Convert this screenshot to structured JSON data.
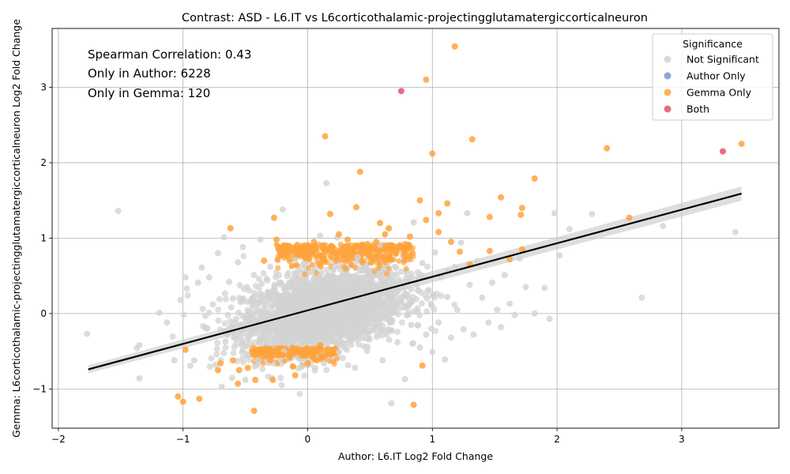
{
  "chart_data": {
    "type": "scatter",
    "title": "Contrast: ASD - L6.IT vs L6corticothalamic-projectingglutamatergiccorticalneuron",
    "xlabel": "Author: L6.IT Log2 Fold Change",
    "ylabel": "Gemma: L6corticothalamic-projectingglutamatergiccorticalneuron Log2 Fold Change",
    "xlim": [
      -2.05,
      3.78
    ],
    "ylim": [
      -1.52,
      3.78
    ],
    "xticks": [
      -2,
      -1,
      0,
      1,
      2,
      3
    ],
    "yticks": [
      -1,
      0,
      1,
      2,
      3
    ],
    "grid": true,
    "annotations": [
      "Spearman Correlation: 0.43",
      "Only in Author: 6228",
      "Only in Gemma: 120"
    ],
    "legend": {
      "title": "Significance",
      "position": "top-right",
      "entries": [
        {
          "label": "Not Significant",
          "color": "#d3d3d3"
        },
        {
          "label": "Author Only",
          "color": "#7b93d8"
        },
        {
          "label": "Gemma Only",
          "color": "#ffa33a"
        },
        {
          "label": "Both",
          "color": "#e0556f"
        }
      ]
    },
    "regression_line": {
      "x": [
        -1.76,
        3.48
      ],
      "y": [
        -0.74,
        1.59
      ],
      "color": "#000000"
    },
    "series": [
      {
        "name": "Not Significant",
        "color": "#d3d3d3",
        "points": [
          [
            -1.77,
            -0.27
          ],
          [
            -1.52,
            1.36
          ],
          [
            -1.35,
            -0.42
          ],
          [
            -1.37,
            -0.46
          ],
          [
            -1.35,
            -0.86
          ],
          [
            -1.19,
            0.01
          ],
          [
            -1.13,
            -0.12
          ],
          [
            -1.07,
            -0.62
          ],
          [
            -1.02,
            0.18
          ],
          [
            -0.98,
            0.48
          ],
          [
            -0.97,
            0.33
          ],
          [
            -0.91,
            -0.62
          ],
          [
            -0.88,
            0.41
          ],
          [
            -0.85,
            0.61
          ],
          [
            -0.82,
            -0.19
          ],
          [
            -0.79,
            0.48
          ],
          [
            -0.76,
            0.12
          ],
          [
            -0.74,
            -0.68
          ],
          [
            -0.72,
            0.8
          ],
          [
            -0.69,
            -0.97
          ],
          [
            -0.67,
            1.01
          ],
          [
            -0.66,
            -0.37
          ],
          [
            -0.63,
            0.42
          ],
          [
            -0.6,
            0.2
          ],
          [
            -0.58,
            -0.12
          ],
          [
            -0.56,
            0.68
          ],
          [
            -0.53,
            -0.42
          ],
          [
            -0.52,
            0.88
          ],
          [
            -0.5,
            -0.88
          ],
          [
            -0.47,
            0.31
          ],
          [
            -0.44,
            -0.21
          ],
          [
            -0.43,
            0.51
          ],
          [
            -0.4,
            -0.62
          ],
          [
            -0.38,
            0.98
          ],
          [
            -0.35,
            0.12
          ],
          [
            -0.33,
            -0.38
          ],
          [
            -0.3,
            0.62
          ],
          [
            -0.28,
            -0.66
          ],
          [
            -0.25,
            0.22
          ],
          [
            -0.23,
            -0.05
          ],
          [
            -0.2,
            1.38
          ],
          [
            -0.19,
            -0.5
          ],
          [
            -0.15,
            0.41
          ],
          [
            -0.13,
            -0.21
          ],
          [
            -0.1,
            0.71
          ],
          [
            -0.08,
            0.08
          ],
          [
            -0.05,
            -0.71
          ],
          [
            -0.03,
            0.3
          ],
          [
            0.0,
            -0.12
          ],
          [
            0.03,
            0.55
          ],
          [
            0.05,
            -0.4
          ],
          [
            0.08,
            0.11
          ],
          [
            0.1,
            1.03
          ],
          [
            0.13,
            -0.66
          ],
          [
            0.15,
            1.73
          ],
          [
            0.17,
            0.21
          ],
          [
            0.2,
            -0.18
          ],
          [
            0.22,
            0.62
          ],
          [
            0.25,
            -0.51
          ],
          [
            0.28,
            0.05
          ],
          [
            0.31,
            0.44
          ],
          [
            0.33,
            -0.31
          ],
          [
            0.35,
            0.18
          ],
          [
            0.38,
            -0.72
          ],
          [
            0.4,
            0.75
          ],
          [
            0.43,
            -0.12
          ],
          [
            0.45,
            0.33
          ],
          [
            0.48,
            -0.44
          ],
          [
            0.5,
            0.52
          ],
          [
            0.53,
            -0.21
          ],
          [
            0.55,
            0.08
          ],
          [
            0.58,
            0.91
          ],
          [
            0.6,
            -0.62
          ],
          [
            0.63,
            0.27
          ],
          [
            0.65,
            -0.08
          ],
          [
            0.67,
            -1.19
          ],
          [
            0.7,
            0.62
          ],
          [
            0.72,
            -0.38
          ],
          [
            0.75,
            0.21
          ],
          [
            0.78,
            -0.87
          ],
          [
            0.8,
            0.44
          ],
          [
            0.83,
            -0.15
          ],
          [
            0.85,
            1.21
          ],
          [
            0.88,
            0.03
          ],
          [
            0.9,
            -0.45
          ],
          [
            0.92,
            0.67
          ],
          [
            0.95,
            -0.28
          ],
          [
            0.97,
            0.31
          ],
          [
            1.0,
            -0.51
          ],
          [
            1.02,
            0.81
          ],
          [
            1.05,
            -0.12
          ],
          [
            1.07,
            0.48
          ],
          [
            1.1,
            -0.61
          ],
          [
            1.12,
            0.22
          ],
          [
            1.15,
            -0.32
          ],
          [
            1.18,
            0.62
          ],
          [
            1.2,
            0.05
          ],
          [
            1.23,
            0.94
          ],
          [
            1.25,
            -0.21
          ],
          [
            1.28,
            1.33
          ],
          [
            1.3,
            0.38
          ],
          [
            1.33,
            -0.28
          ],
          [
            1.36,
            0.69
          ],
          [
            1.4,
            0.21
          ],
          [
            1.45,
            -0.12
          ],
          [
            1.48,
            0.41
          ],
          [
            1.52,
            0.05
          ],
          [
            1.55,
            -0.18
          ],
          [
            1.58,
            0.51
          ],
          [
            1.62,
            0.13
          ],
          [
            1.66,
            -0.02
          ],
          [
            1.7,
            0.73
          ],
          [
            1.75,
            0.35
          ],
          [
            1.82,
            0.0
          ],
          [
            1.9,
            0.34
          ],
          [
            1.94,
            -0.07
          ],
          [
            1.98,
            1.33
          ],
          [
            2.02,
            0.77
          ],
          [
            2.1,
            1.12
          ],
          [
            2.28,
            1.32
          ],
          [
            2.68,
            0.21
          ],
          [
            2.85,
            1.16
          ],
          [
            3.43,
            1.08
          ]
        ]
      },
      {
        "name": "Author Only",
        "color": "#7b93d8",
        "points": []
      },
      {
        "name": "Gemma Only",
        "color": "#ffa33a",
        "points": [
          [
            1.18,
            3.54
          ],
          [
            0.95,
            3.1
          ],
          [
            0.14,
            2.35
          ],
          [
            1.32,
            2.31
          ],
          [
            2.4,
            2.19
          ],
          [
            3.48,
            2.25
          ],
          [
            1.0,
            2.12
          ],
          [
            0.42,
            1.88
          ],
          [
            1.82,
            1.79
          ],
          [
            1.72,
            1.4
          ],
          [
            1.55,
            1.54
          ],
          [
            1.12,
            1.46
          ],
          [
            0.9,
            1.5
          ],
          [
            0.39,
            1.41
          ],
          [
            0.18,
            1.32
          ],
          [
            -0.62,
            1.13
          ],
          [
            -0.27,
            1.27
          ],
          [
            2.58,
            1.27
          ],
          [
            1.71,
            1.31
          ],
          [
            1.46,
            1.28
          ],
          [
            0.58,
            1.2
          ],
          [
            0.65,
            1.13
          ],
          [
            0.95,
            1.24
          ],
          [
            1.05,
            1.33
          ],
          [
            0.25,
            1.05
          ],
          [
            0.32,
            0.98
          ],
          [
            0.05,
            0.95
          ],
          [
            -0.1,
            0.88
          ],
          [
            -0.25,
            0.98
          ],
          [
            0.48,
            0.92
          ],
          [
            0.75,
            0.88
          ],
          [
            0.82,
            1.02
          ],
          [
            1.15,
            0.95
          ],
          [
            1.22,
            0.82
          ],
          [
            1.3,
            0.65
          ],
          [
            1.46,
            0.83
          ],
          [
            1.62,
            0.72
          ],
          [
            1.72,
            0.85
          ],
          [
            0.12,
            0.72
          ],
          [
            -0.35,
            0.7
          ],
          [
            -0.98,
            -0.48
          ],
          [
            -1.0,
            -1.17
          ],
          [
            -1.04,
            -1.1
          ],
          [
            -0.87,
            -1.13
          ],
          [
            -0.7,
            -0.66
          ],
          [
            -0.72,
            -0.75
          ],
          [
            -0.6,
            -0.62
          ],
          [
            -0.56,
            -0.93
          ],
          [
            -0.55,
            -0.75
          ],
          [
            -0.48,
            -0.72
          ],
          [
            -0.43,
            -1.29
          ],
          [
            -0.42,
            -0.88
          ],
          [
            -0.37,
            -0.51
          ],
          [
            -0.3,
            -0.62
          ],
          [
            -0.28,
            -0.88
          ],
          [
            -0.2,
            -0.55
          ],
          [
            -0.12,
            -0.7
          ],
          [
            -0.1,
            -0.82
          ],
          [
            -0.05,
            -0.51
          ],
          [
            0.0,
            -0.66
          ],
          [
            0.1,
            -0.42
          ],
          [
            0.85,
            -1.21
          ],
          [
            0.92,
            -0.69
          ],
          [
            0.2,
            0.88
          ],
          [
            0.35,
            0.85
          ],
          [
            0.55,
            0.95
          ],
          [
            0.62,
            1.05
          ],
          [
            0.78,
            0.92
          ],
          [
            1.05,
            1.08
          ]
        ]
      },
      {
        "name": "Both",
        "color": "#e0556f",
        "points": [
          [
            0.75,
            2.95
          ],
          [
            3.33,
            2.15
          ]
        ]
      }
    ]
  }
}
